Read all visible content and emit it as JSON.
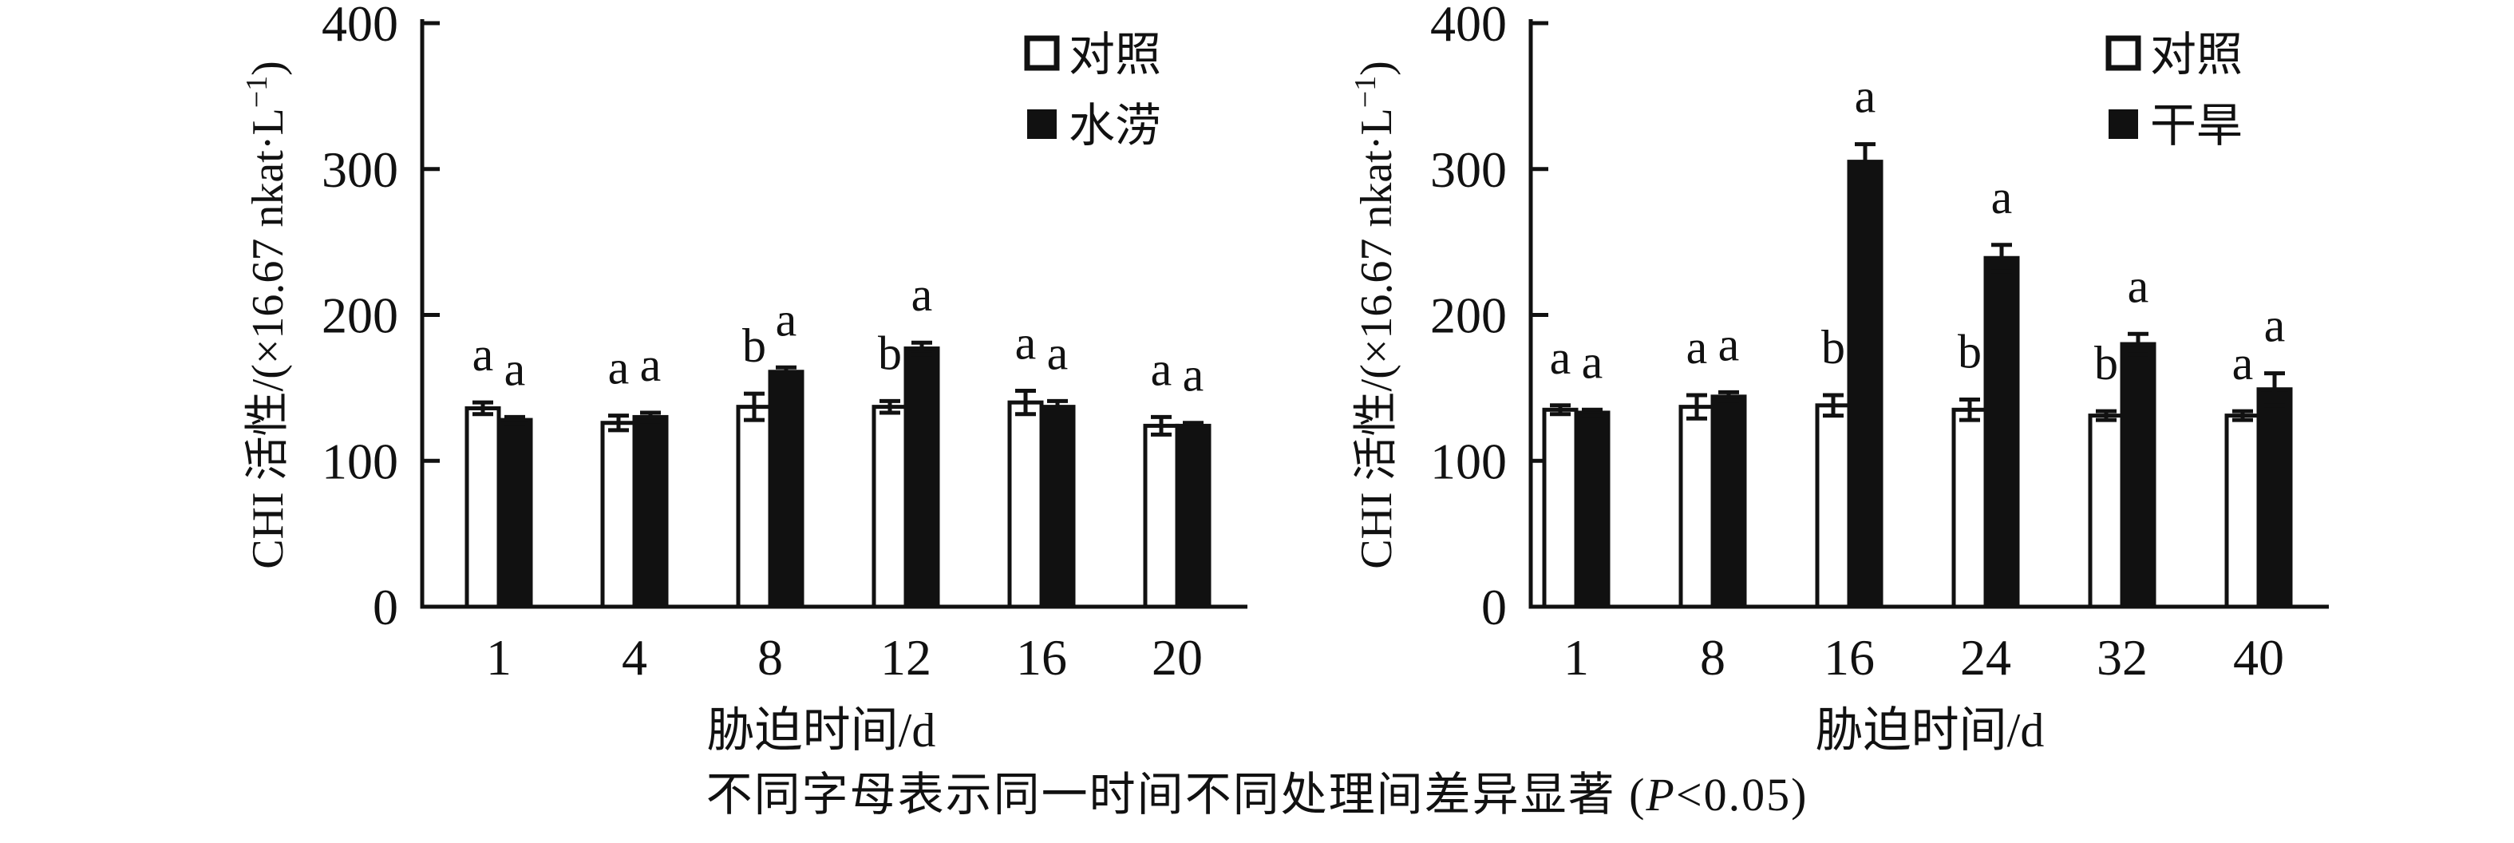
{
  "figure": {
    "caption": {
      "prefix": "不同字母表示同一时间不同处理间差异显著 (",
      "italic_p": "P",
      "suffix": "<0.05)"
    }
  },
  "colors": {
    "foreground": "#111111",
    "background": "#ffffff",
    "control_bar_fill": "#ffffff",
    "treatment_bar_fill": "#111111"
  },
  "chart_data": [
    {
      "type": "bar",
      "title": "",
      "xlabel": "胁迫时间/d",
      "ylabel": "CHI 活性/(×16.67 nkat·L⁻¹)",
      "ylabel_parts": {
        "pre": "CHI 活性/(×16.67 nkat·L",
        "sup": "−1",
        "post": ")"
      },
      "ylim": [
        0,
        400
      ],
      "yticks": [
        0,
        100,
        200,
        300,
        400
      ],
      "grid": false,
      "legend_position": "top-right",
      "categories": [
        "1",
        "4",
        "8",
        "12",
        "16",
        "20"
      ],
      "series": [
        {
          "name": "对照",
          "role": "control",
          "fill": "white",
          "values": [
            136,
            126,
            137,
            137,
            140,
            124
          ],
          "errors": [
            4,
            5,
            9,
            4,
            8,
            6
          ],
          "letters": [
            "a",
            "a",
            "b",
            "b",
            "a",
            "a"
          ]
        },
        {
          "name": "水涝",
          "role": "waterlogging",
          "fill": "black",
          "values": [
            128,
            130,
            161,
            177,
            137,
            124
          ],
          "errors": [
            2,
            3,
            3,
            4,
            4,
            2
          ],
          "letters": [
            "a",
            "a",
            "a",
            "a",
            "a",
            "a"
          ]
        }
      ]
    },
    {
      "type": "bar",
      "title": "",
      "xlabel": "胁迫时间/d",
      "ylabel": "CHI 活性/(×16.67 nkat·L⁻¹)",
      "ylabel_parts": {
        "pre": "CHI 活性/(×16.67 nkat·L",
        "sup": "−1",
        "post": ")"
      },
      "ylim": [
        0,
        400
      ],
      "yticks": [
        0,
        100,
        200,
        300,
        400
      ],
      "grid": false,
      "legend_position": "top-right",
      "categories": [
        "1",
        "8",
        "16",
        "24",
        "32",
        "40"
      ],
      "series": [
        {
          "name": "对照",
          "role": "control",
          "fill": "white",
          "values": [
            135,
            137,
            138,
            135,
            131,
            131
          ],
          "errors": [
            3,
            8,
            7,
            7,
            3,
            3
          ],
          "letters": [
            "a",
            "a",
            "b",
            "b",
            "b",
            "a"
          ]
        },
        {
          "name": "干旱",
          "role": "drought",
          "fill": "black",
          "values": [
            133,
            144,
            305,
            239,
            180,
            149
          ],
          "errors": [
            2,
            3,
            12,
            9,
            7,
            11
          ],
          "letters": [
            "a",
            "a",
            "a",
            "a",
            "a",
            "a"
          ]
        }
      ]
    }
  ]
}
